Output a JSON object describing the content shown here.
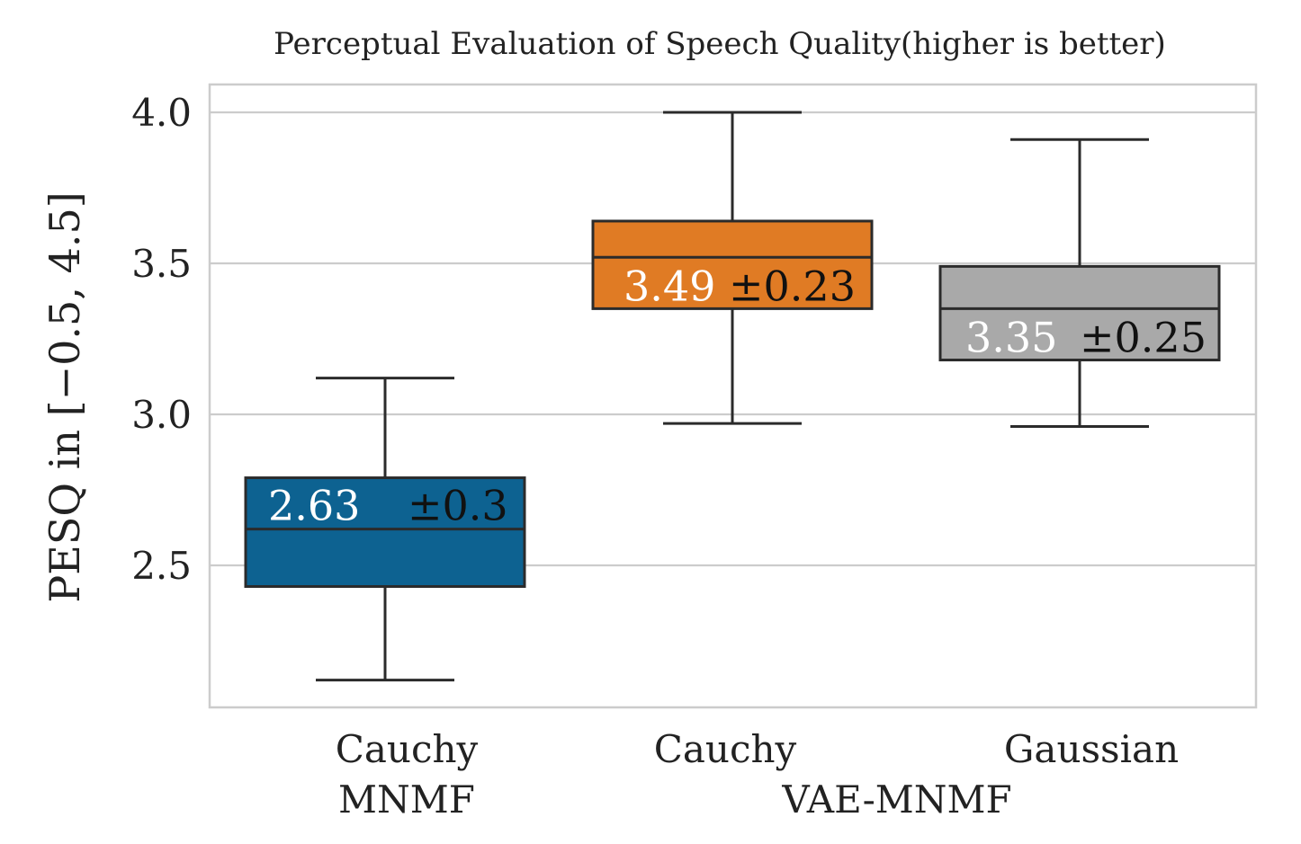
{
  "chart_data": {
    "type": "box",
    "title": "Perceptual Evaluation of Speech Quality(higher is better)",
    "ylabel": "PESQ in [−0.5, 4.5]",
    "ylim": [
      2.0,
      4.1
    ],
    "yticks": [
      "2.5",
      "3.0",
      "3.5",
      "4.0"
    ],
    "grid": true,
    "categories": [
      "Cauchy",
      "Cauchy",
      "Gaussian"
    ],
    "groups": [
      {
        "label": "MNMF",
        "categories": [
          0
        ]
      },
      {
        "label": "VAE-MNMF",
        "categories": [
          1,
          2
        ]
      }
    ],
    "series": [
      {
        "category": "Cauchy",
        "group": "MNMF",
        "color": "#0d6291",
        "whisker_low": 2.12,
        "q1": 2.43,
        "median": 2.62,
        "q3": 2.79,
        "whisker_high": 3.12,
        "annotation_mean": "2.63",
        "annotation_std": "±0.3"
      },
      {
        "category": "Cauchy",
        "group": "VAE-MNMF",
        "color": "#e07b24",
        "whisker_low": 2.97,
        "q1": 3.35,
        "median": 3.52,
        "q3": 3.64,
        "whisker_high": 4.0,
        "annotation_mean": "3.49",
        "annotation_std": "±0.23"
      },
      {
        "category": "Gaussian",
        "group": "VAE-MNMF",
        "color": "#a9a9a9",
        "whisker_low": 2.96,
        "q1": 3.18,
        "median": 3.35,
        "q3": 3.49,
        "whisker_high": 3.91,
        "annotation_mean": "3.35",
        "annotation_std": "±0.25"
      }
    ]
  }
}
